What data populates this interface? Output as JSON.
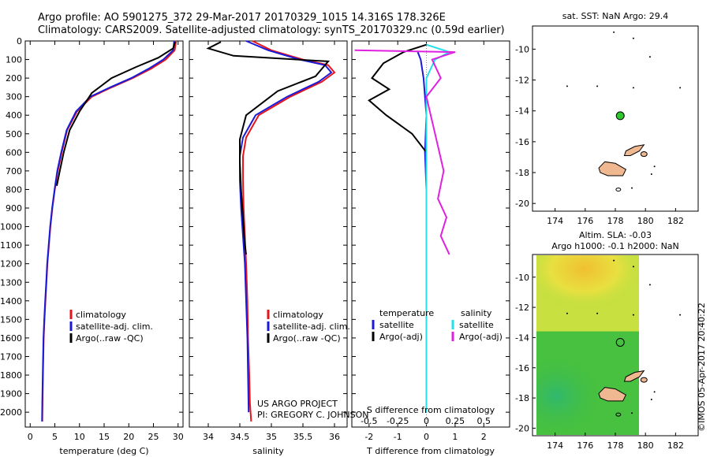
{
  "header": {
    "line1": "Argo profile: AO 5901275_372 29-Mar-2017 20170329_1015 14.316S 178.326E",
    "line2": "Climatology: CARS2009. Satellite-adjusted climatology: synTS_20170329.nc (0.59d earlier)"
  },
  "footer": {
    "project": "US ARGO PROJECT",
    "pi": "PI: GREGORY C. JOHNSON",
    "imos": "©IMOS 05-Apr-2017 20:40:22"
  },
  "colors": {
    "climatology": "#e8141c",
    "satellite": "#1a1ad8",
    "argo": "#000000",
    "salinity_sat": "#22e0e8",
    "salinity_argo": "#e020e0"
  },
  "chart_data": [
    {
      "type": "line",
      "name": "temperature-profile",
      "xlabel": "temperature (deg C)",
      "ylabel": "",
      "xlim": [
        -1,
        31
      ],
      "ylim": [
        2080,
        0
      ],
      "xticks": [
        0,
        5,
        10,
        15,
        20,
        25,
        30
      ],
      "yticks": [
        0,
        100,
        200,
        300,
        400,
        500,
        600,
        700,
        800,
        900,
        1000,
        1100,
        1200,
        1300,
        1400,
        1500,
        1600,
        1700,
        1800,
        1900,
        2000
      ],
      "legend": [
        "climatology",
        "satellite-adj. clim.",
        "Argo(..raw -QC)"
      ],
      "series": [
        {
          "name": "climatology",
          "color": "#e8141c",
          "x": [
            29.6,
            29.3,
            27.5,
            24.5,
            20.8,
            16.5,
            12.5,
            9.5,
            7.5,
            6.4,
            5.6,
            5.0,
            4.5,
            4.1,
            3.8,
            3.5,
            3.3,
            3.1,
            2.9,
            2.75,
            2.6,
            2.5,
            2.45
          ],
          "y": [
            0,
            50,
            100,
            150,
            200,
            250,
            300,
            380,
            480,
            600,
            700,
            800,
            900,
            1000,
            1100,
            1200,
            1300,
            1400,
            1500,
            1600,
            1800,
            1950,
            2050
          ]
        },
        {
          "name": "satellite-adj. clim.",
          "color": "#1a1ad8",
          "x": [
            29.2,
            29.0,
            27.0,
            24.0,
            20.5,
            16.2,
            12.2,
            9.3,
            7.4,
            6.3,
            5.5,
            4.95,
            4.45,
            4.05,
            3.75,
            3.45,
            3.25,
            3.05,
            2.85,
            2.7,
            2.55,
            2.45,
            2.4
          ],
          "y": [
            0,
            50,
            100,
            150,
            200,
            250,
            300,
            380,
            480,
            600,
            700,
            800,
            900,
            1000,
            1100,
            1200,
            1300,
            1400,
            1500,
            1600,
            1800,
            1950,
            2050
          ]
        },
        {
          "name": "Argo(..raw -QC)",
          "color": "#000000",
          "x": [
            29.4,
            29.0,
            26.0,
            21.5,
            16.5,
            12.5,
            10.0,
            8.0,
            6.8,
            6.0,
            5.4
          ],
          "y": [
            5,
            40,
            90,
            140,
            200,
            280,
            380,
            480,
            600,
            700,
            780
          ]
        }
      ]
    },
    {
      "type": "line",
      "name": "salinity-profile",
      "xlabel": "salinity",
      "ylabel": "",
      "xlim": [
        33.7,
        36.2
      ],
      "ylim": [
        2080,
        0
      ],
      "xticks": [
        34,
        34.5,
        35,
        35.5,
        36
      ],
      "legend": [
        "climatology",
        "satellite-adj. clim.",
        "Argo(..raw -QC)"
      ],
      "series": [
        {
          "name": "climatology",
          "color": "#e8141c",
          "x": [
            34.7,
            35.0,
            35.5,
            35.9,
            36.0,
            35.8,
            35.3,
            34.8,
            34.6,
            34.55,
            34.55,
            34.56,
            34.58,
            34.6,
            34.62,
            34.63,
            34.65,
            34.66,
            34.67,
            34.68
          ],
          "y": [
            0,
            50,
            100,
            130,
            170,
            220,
            300,
            400,
            520,
            620,
            750,
            900,
            1050,
            1200,
            1400,
            1600,
            1800,
            1950,
            2000,
            2050
          ]
        },
        {
          "name": "satellite-adj. clim.",
          "color": "#1a1ad8",
          "x": [
            34.6,
            34.95,
            35.45,
            35.85,
            35.95,
            35.75,
            35.25,
            34.75,
            34.55,
            34.5,
            34.5,
            34.52,
            34.55,
            34.58,
            34.6,
            34.62,
            34.63,
            34.64
          ],
          "y": [
            0,
            50,
            100,
            130,
            170,
            220,
            300,
            400,
            520,
            620,
            750,
            900,
            1050,
            1200,
            1400,
            1600,
            1800,
            2000
          ]
        },
        {
          "name": "Argo(..raw -QC)",
          "color": "#000000",
          "x": [
            34.2,
            34.0,
            34.4,
            35.9,
            35.7,
            35.1,
            34.6,
            34.5,
            34.5,
            34.52,
            34.55,
            34.58,
            34.6
          ],
          "y": [
            5,
            40,
            80,
            110,
            190,
            270,
            400,
            530,
            650,
            800,
            950,
            1100,
            1150
          ]
        }
      ]
    },
    {
      "type": "line",
      "name": "difference-profile",
      "xlabel": "T difference from climatology",
      "xlabel2": "S difference from climatology",
      "ylabel": "",
      "xlim": [
        -2.6,
        2.9
      ],
      "ylim": [
        2080,
        0
      ],
      "xticks": [
        -2,
        -1,
        0,
        1,
        2
      ],
      "xticks_s": [
        "-0.5",
        "-0.25",
        "0",
        "0.25",
        "0.5"
      ],
      "legend_headers": [
        "temperature",
        "salinity"
      ],
      "legend": [
        "satellite",
        "Argo(-adj)",
        "satellite",
        "Argo(-adj)"
      ],
      "series": [
        {
          "name": "T satellite",
          "color": "#1a1ad8",
          "x": [
            -0.3,
            -0.2,
            -0.1,
            0.0,
            -0.05,
            0.0,
            0.0,
            0.0,
            0.0,
            0.0
          ],
          "y": [
            60,
            100,
            200,
            400,
            600,
            800,
            1000,
            1200,
            1600,
            2000
          ]
        },
        {
          "name": "T Argo(-adj)",
          "color": "#000000",
          "x": [
            0.0,
            -0.8,
            -1.5,
            -1.9,
            -1.3,
            -2.0,
            -1.4,
            -0.5,
            0.0,
            0.0
          ],
          "y": [
            20,
            60,
            120,
            200,
            260,
            320,
            400,
            500,
            600,
            700
          ]
        },
        {
          "name": "S satellite",
          "color": "#22e0e8",
          "x": [
            0.0,
            0.8,
            0.3,
            0.0,
            0.0,
            0.0,
            0.0,
            0.0,
            0.0,
            0.0
          ],
          "y": [
            20,
            60,
            100,
            200,
            400,
            600,
            900,
            1200,
            1600,
            2000
          ]
        },
        {
          "name": "S Argo(-adj)",
          "color": "#e020e0",
          "x": [
            -2.5,
            1.0,
            0.2,
            0.5,
            0.0,
            0.3,
            0.6,
            0.4,
            0.7,
            0.5,
            0.8
          ],
          "y": [
            50,
            60,
            100,
            200,
            300,
            500,
            700,
            850,
            950,
            1050,
            1150
          ]
        }
      ]
    },
    {
      "type": "scatter",
      "name": "sst-map",
      "title": "sat. SST: NaN  Argo: 29.4",
      "xlim": [
        172.5,
        183.5
      ],
      "ylim": [
        -20.5,
        -8.5
      ],
      "xticks": [
        174,
        176,
        178,
        180,
        182
      ],
      "yticks": [
        -10,
        -12,
        -14,
        -16,
        -18,
        -20
      ],
      "points": [
        {
          "label": "Argo float",
          "x": 178.326,
          "y": -14.316
        }
      ]
    },
    {
      "type": "heatmap",
      "name": "sla-map",
      "title_line1": "Altim. SLA: -0.03",
      "title_line2": "Argo h1000: -0.1 h2000: NaN",
      "xlim": [
        172.5,
        183.5
      ],
      "ylim": [
        -20.5,
        -8.5
      ],
      "xticks": [
        174,
        176,
        178,
        180,
        182
      ],
      "yticks": [
        -10,
        -12,
        -14,
        -16,
        -18,
        -20
      ],
      "points": [
        {
          "label": "Argo float",
          "x": 178.326,
          "y": -14.316
        }
      ]
    }
  ]
}
